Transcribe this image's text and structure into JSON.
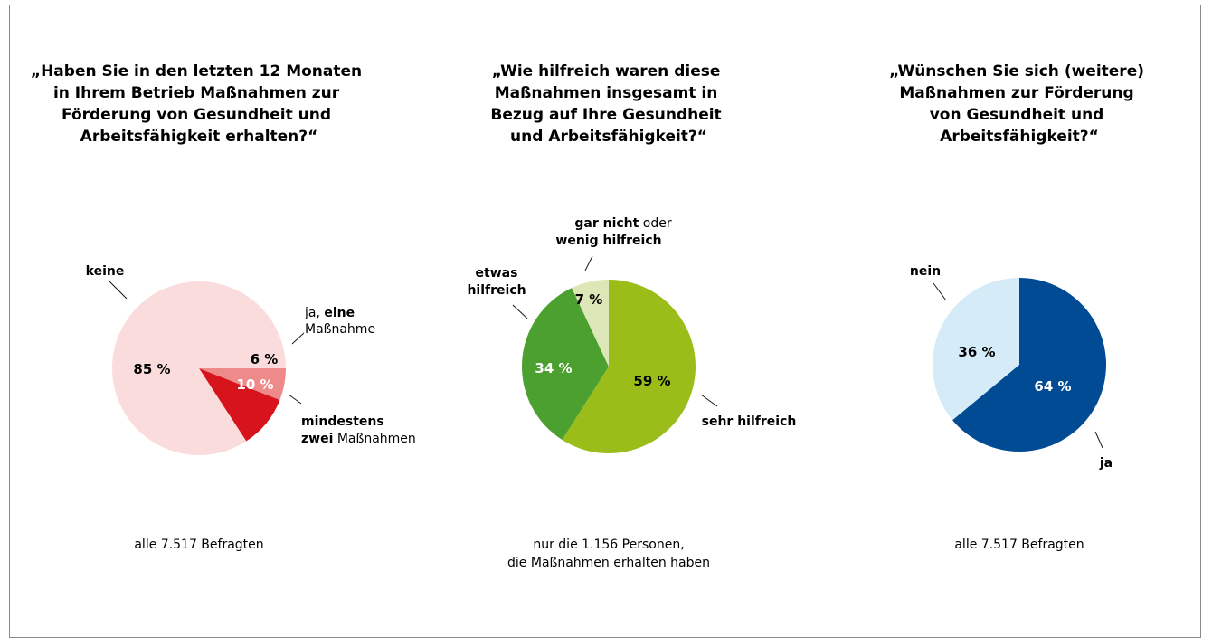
{
  "chart_data": [
    {
      "type": "pie",
      "title": "„Haben Sie in den letzten 12 Monaten in Ihrem Betrieb Maßnahmen zur Förderung von Gesundheit und Arbeitsfähigkeit erhalten?“",
      "title_lines": [
        "„Haben Sie in den letzten 12 Monaten",
        "in Ihrem Betrieb Maßnahmen zur",
        "Förderung von Gesundheit und",
        "Arbeitsfähigkeit erhalten?“"
      ],
      "slices": [
        {
          "label": "ja, eine Maßnahme",
          "value": 6,
          "value_label": "6 %",
          "color": "#ee8a8a"
        },
        {
          "label": "mindestens zwei Maßnahmen",
          "value": 10,
          "value_label": "10 %",
          "color": "#d7141c"
        },
        {
          "label": "keine",
          "value": 85,
          "value_label": "85 %",
          "color": "#fbdcdd"
        }
      ],
      "labels": {
        "keine": "keine",
        "ja_eine_1": "ja, ",
        "ja_eine_2": "eine",
        "ja_eine_3": "Maßnahme",
        "zwei_1": "mindestens",
        "zwei_2": "zwei",
        "zwei_3": " Maßnahmen"
      },
      "note_lines": [
        "alle 7.517 Befragten"
      ]
    },
    {
      "type": "pie",
      "title": "„Wie hilfreich waren diese Maßnahmen insgesamt in Bezug auf Ihre Gesundheit und Arbeitsfähigkeit?“",
      "title_lines": [
        "„Wie hilfreich waren diese",
        "Maßnahmen insgesamt in",
        "Bezug auf Ihre Gesundheit",
        "und Arbeitsfähigkeit?“"
      ],
      "slices": [
        {
          "label": "sehr hilfreich",
          "value": 59,
          "value_label": "59 %",
          "color": "#9bbd19"
        },
        {
          "label": "etwas hilfreich",
          "value": 34,
          "value_label": "34 %",
          "color": "#4ca02f"
        },
        {
          "label": "gar nicht oder wenig hilfreich",
          "value": 7,
          "value_label": "7 %",
          "color": "#dde6b6"
        }
      ],
      "labels": {
        "gar_1": "gar nicht",
        "gar_2": " oder",
        "gar_3": "wenig hilfreich",
        "etwas_1": "etwas",
        "etwas_2": "hilfreich",
        "sehr": "sehr hilfreich"
      },
      "note_lines": [
        "nur die 1.156 Personen,",
        "die Maßnahmen erhalten haben"
      ]
    },
    {
      "type": "pie",
      "title": "„Wünschen Sie sich (weitere) Maßnahmen zur Förderung von Gesundheit und Arbeitsfähigkeit?“",
      "title_lines": [
        "„Wünschen Sie sich (weitere)",
        "Maßnahmen zur Förderung",
        "von Gesundheit und",
        "Arbeitsfähigkeit?“"
      ],
      "slices": [
        {
          "label": "ja",
          "value": 64,
          "value_label": "64 %",
          "color": "#004b93"
        },
        {
          "label": "nein",
          "value": 36,
          "value_label": "36 %",
          "color": "#d6ebf8"
        }
      ],
      "labels": {
        "nein": "nein",
        "ja": "ja"
      },
      "note_lines": [
        "alle 7.517 Befragten"
      ]
    }
  ]
}
